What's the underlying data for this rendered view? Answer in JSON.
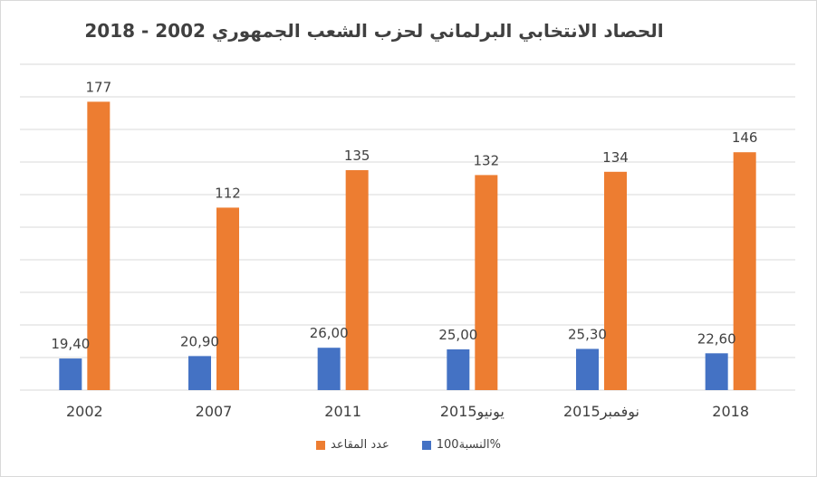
{
  "chart_data": {
    "type": "bar",
    "title": "الحصاد الانتخابي البرلماني لحزب الشعب الجمهوري 2002 - 2018",
    "categories": [
      "2002",
      "2007",
      "2011",
      "يونيو2015",
      "نوفمبر2015",
      "2018"
    ],
    "series": [
      {
        "name": "النسبة100%",
        "color": "#4472C4",
        "values": [
          19.4,
          20.9,
          26.0,
          25.0,
          25.3,
          22.6
        ],
        "labels": [
          "19,40",
          "20,90",
          "26,00",
          "25,00",
          "25,30",
          "22,60"
        ]
      },
      {
        "name": "عدد المقاعد",
        "color": "#ED7D31",
        "values": [
          177,
          112,
          135,
          132,
          134,
          146
        ],
        "labels": [
          "177",
          "112",
          "135",
          "132",
          "134",
          "146"
        ]
      }
    ],
    "ylim": [
      0,
      200
    ],
    "grid": true,
    "legend": "bottom"
  }
}
